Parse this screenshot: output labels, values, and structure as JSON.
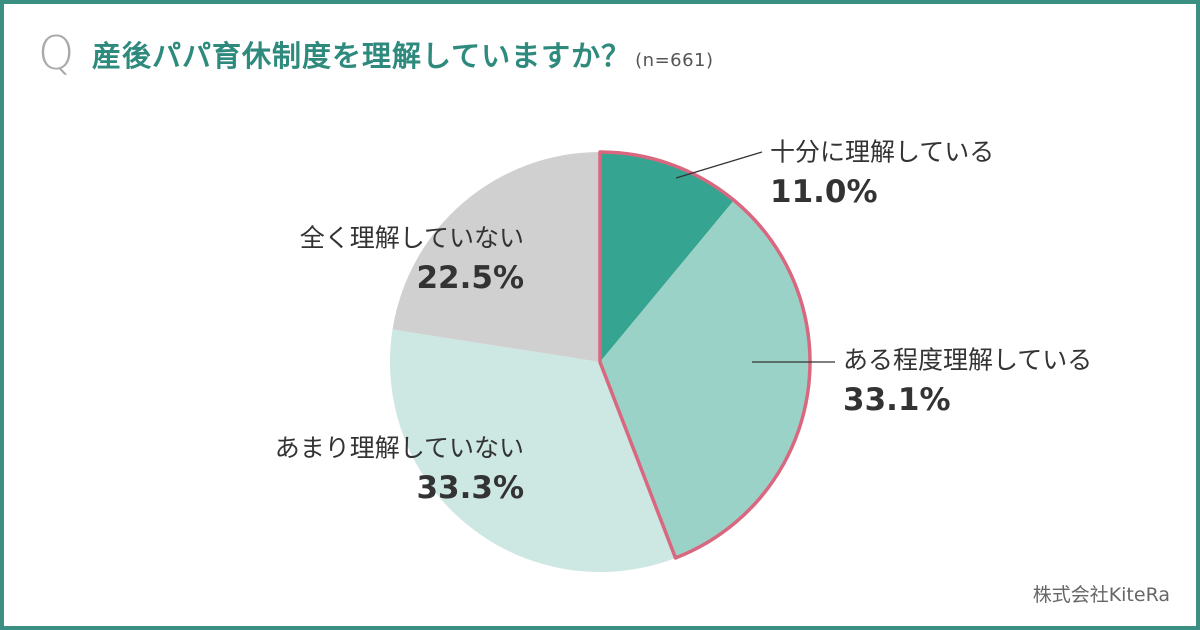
{
  "question_mark": "Q",
  "title": "産後パパ育休制度を理解していますか？",
  "sample": "(n=661)",
  "source": "株式会社KiteRa",
  "chart_data": {
    "type": "pie",
    "title": "産後パパ育休制度を理解していますか？",
    "slices": [
      {
        "label": "十分に理解している",
        "value": 11.0,
        "value_label": "11.0%",
        "color": "#35a591"
      },
      {
        "label": "ある程度理解している",
        "value": 33.1,
        "value_label": "33.1%",
        "color": "#9bd2c8"
      },
      {
        "label": "あまり理解していない",
        "value": 33.3,
        "value_label": "33.3%",
        "color": "#cde7e3"
      },
      {
        "label": "全く理解していない",
        "value": 22.5,
        "value_label": "22.5%",
        "color": "#d0d0d0"
      }
    ],
    "highlight_color": "#d9677f",
    "highlighted_slices": [
      "十分に理解している",
      "ある程度理解している"
    ]
  }
}
